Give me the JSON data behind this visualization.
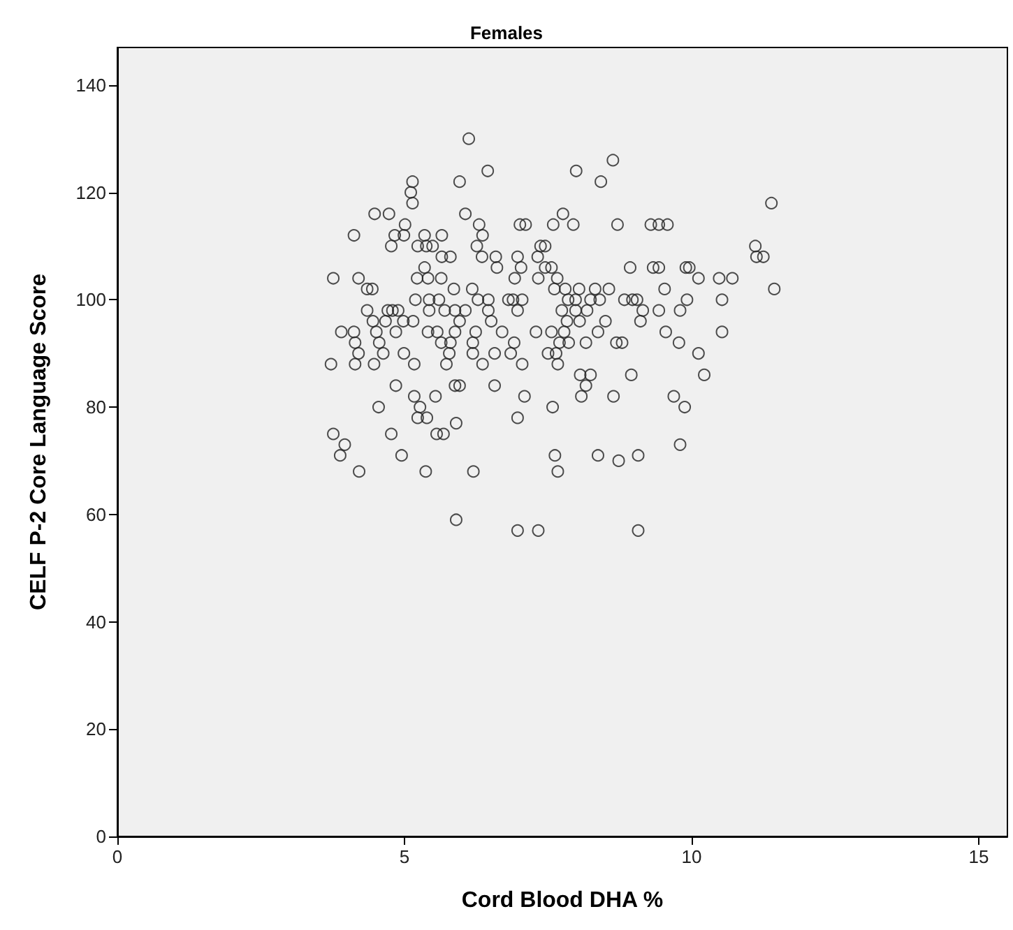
{
  "chart_data": {
    "type": "scatter",
    "title": "Females",
    "xlabel": "Cord Blood DHA %",
    "ylabel": "CELF P-2 Core Language Score",
    "xlim": [
      0,
      15.5
    ],
    "ylim": [
      0,
      147
    ],
    "xticks": [
      0,
      5,
      10,
      15
    ],
    "yticks": [
      0,
      20,
      40,
      60,
      80,
      100,
      120,
      140
    ],
    "marker": "circle",
    "color": "#222222",
    "x": [
      6.12,
      6.45,
      5.96,
      5.14,
      5.11,
      5.14,
      4.48,
      4.73,
      6.06,
      5.01,
      6.3,
      7.01,
      7.11,
      4.12,
      4.83,
      4.99,
      5.35,
      5.65,
      6.36,
      4.77,
      5.23,
      5.38,
      5.49,
      6.26,
      7.37,
      5.35,
      5.65,
      5.8,
      6.35,
      6.59,
      6.61,
      6.97,
      7.32,
      7.03,
      3.76,
      4.2,
      5.22,
      5.41,
      5.64,
      6.92,
      7.33,
      4.35,
      4.44,
      5.86,
      6.18,
      5.19,
      5.43,
      5.6,
      6.28,
      6.46,
      6.81,
      6.89,
      7.05,
      4.35,
      4.71,
      4.79,
      4.89,
      5.43,
      5.7,
      5.88,
      6.06,
      6.46,
      4.45,
      4.67,
      4.98,
      5.15,
      5.96,
      6.51,
      6.97,
      3.9,
      4.12,
      4.51,
      4.85,
      5.41,
      5.57,
      5.88,
      6.24,
      6.7,
      7.29,
      4.14,
      4.56,
      5.64,
      5.8,
      6.19,
      6.91,
      4.2,
      4.63,
      4.99,
      5.78,
      6.19,
      6.57,
      6.85,
      3.72,
      4.14,
      4.47,
      5.17,
      5.73,
      6.36,
      7.05,
      4.85,
      5.88,
      5.96,
      6.57,
      4.55,
      5.17,
      5.54,
      7.09,
      5.27,
      5.23,
      5.39,
      5.9,
      6.97,
      3.76,
      4.77,
      5.56,
      5.68,
      3.96,
      3.88,
      4.95,
      4.21,
      5.37,
      6.2,
      5.9,
      6.97,
      7.33,
      8.63,
      7.99,
      8.42,
      7.76,
      7.59,
      7.94,
      8.71,
      9.29,
      9.43,
      9.58,
      11.39,
      7.45,
      7.45,
      7.56,
      8.93,
      9.33,
      9.43,
      9.9,
      9.96,
      7.66,
      10.12,
      10.48,
      10.71,
      11.11,
      11.13,
      11.25,
      11.44,
      7.61,
      7.8,
      8.04,
      8.32,
      8.56,
      9.53,
      7.85,
      7.98,
      8.24,
      8.4,
      8.83,
      8.97,
      9.05,
      9.92,
      10.53,
      7.74,
      7.98,
      8.18,
      9.15,
      9.43,
      9.8,
      7.83,
      8.05,
      8.5,
      9.11,
      7.56,
      7.78,
      8.37,
      9.55,
      10.53,
      7.7,
      7.86,
      8.16,
      8.69,
      8.79,
      9.78,
      7.5,
      7.64,
      10.12,
      7.67,
      8.06,
      8.24,
      8.95,
      10.22,
      8.16,
      8.08,
      8.64,
      9.69,
      7.58,
      9.88,
      9.8,
      7.62,
      8.37,
      8.73,
      9.07,
      7.67,
      9.07
    ],
    "values": [
      130,
      124,
      122,
      122,
      120,
      118,
      116,
      116,
      116,
      114,
      114,
      114,
      114,
      112,
      112,
      112,
      112,
      112,
      112,
      110,
      110,
      110,
      110,
      110,
      110,
      106,
      108,
      108,
      108,
      108,
      106,
      108,
      108,
      106,
      104,
      104,
      104,
      104,
      104,
      104,
      104,
      102,
      102,
      102,
      102,
      100,
      100,
      100,
      100,
      100,
      100,
      100,
      100,
      98,
      98,
      98,
      98,
      98,
      98,
      98,
      98,
      98,
      96,
      96,
      96,
      96,
      96,
      96,
      98,
      94,
      94,
      94,
      94,
      94,
      94,
      94,
      94,
      94,
      94,
      92,
      92,
      92,
      92,
      92,
      92,
      90,
      90,
      90,
      90,
      90,
      90,
      90,
      88,
      88,
      88,
      88,
      88,
      88,
      88,
      84,
      84,
      84,
      84,
      80,
      82,
      82,
      82,
      80,
      78,
      78,
      77,
      78,
      75,
      75,
      75,
      75,
      73,
      71,
      71,
      68,
      68,
      68,
      59,
      57,
      57,
      126,
      124,
      122,
      116,
      114,
      114,
      114,
      114,
      114,
      114,
      118,
      110,
      106,
      106,
      106,
      106,
      106,
      106,
      106,
      104,
      104,
      104,
      104,
      110,
      108,
      108,
      102,
      102,
      102,
      102,
      102,
      102,
      102,
      100,
      100,
      100,
      100,
      100,
      100,
      100,
      100,
      100,
      98,
      98,
      98,
      98,
      98,
      98,
      96,
      96,
      96,
      96,
      94,
      94,
      94,
      94,
      94,
      92,
      92,
      92,
      92,
      92,
      92,
      90,
      90,
      90,
      88,
      86,
      86,
      86,
      86,
      84,
      82,
      82,
      82,
      80,
      80,
      73,
      71,
      71,
      70,
      71,
      68,
      57
    ]
  }
}
